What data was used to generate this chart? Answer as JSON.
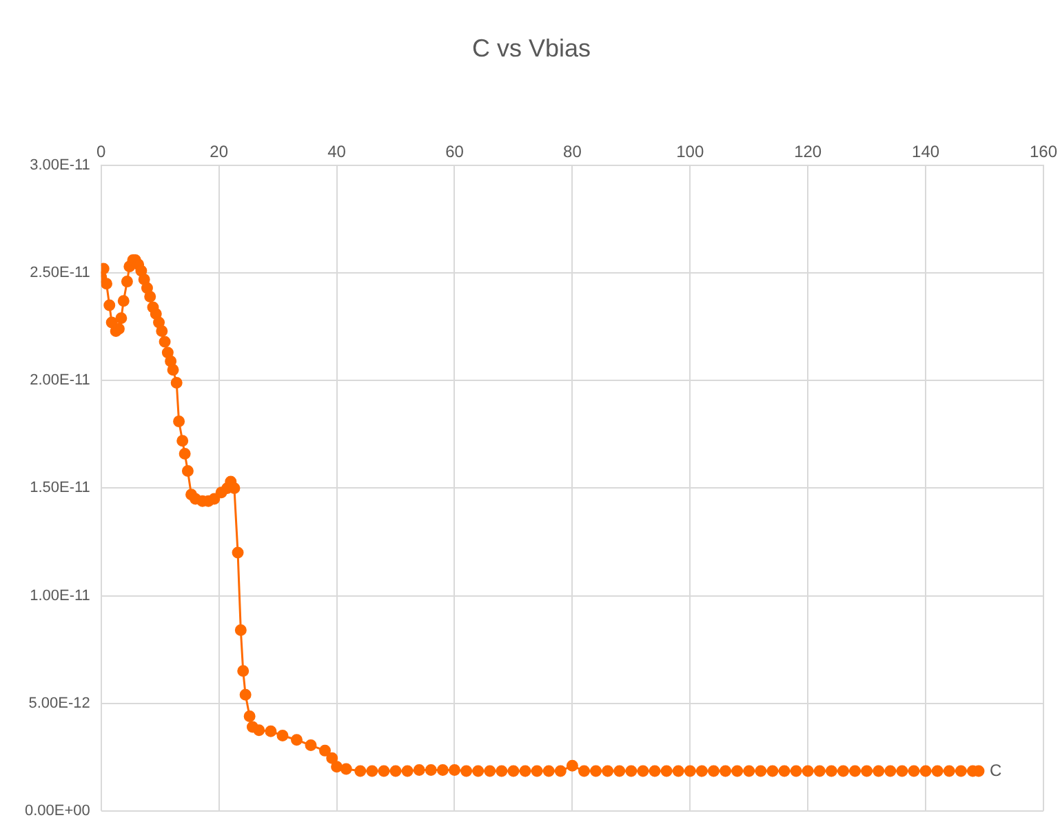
{
  "chart_data": {
    "type": "line",
    "title": "C vs Vbias",
    "x": [
      0,
      0.4,
      0.9,
      1.4,
      1.8,
      2.5,
      3.0,
      3.4,
      3.8,
      4.4,
      4.8,
      5.4,
      5.8,
      6.3,
      6.8,
      7.3,
      7.8,
      8.3,
      8.8,
      9.3,
      9.8,
      10.3,
      10.8,
      11.3,
      11.8,
      12.2,
      12.8,
      13.2,
      13.8,
      14.2,
      14.7,
      15.3,
      16,
      17.2,
      18.2,
      19.2,
      20.4,
      21.4,
      22,
      22.6,
      23.2,
      23.7,
      24.1,
      24.5,
      25.2,
      25.7,
      26.8,
      28.8,
      30.8,
      33.2,
      35.6,
      38.0,
      39.2,
      40.0,
      41.6,
      44,
      46,
      48,
      50,
      52,
      54,
      56,
      58,
      60,
      62,
      64,
      66,
      68,
      70,
      72,
      74,
      76,
      78,
      80,
      82,
      84,
      86,
      88,
      90,
      92,
      94,
      96,
      98,
      100,
      102,
      104,
      106,
      108,
      110,
      112,
      114,
      116,
      118,
      120,
      122,
      124,
      126,
      128,
      130,
      132,
      134,
      136,
      138,
      140,
      142,
      144,
      146,
      148,
      149
    ],
    "series": [
      {
        "name": "C",
        "color": "#ff6a00",
        "values": [
          2.48e-11,
          2.52e-11,
          2.45e-11,
          2.35e-11,
          2.27e-11,
          2.23e-11,
          2.24e-11,
          2.29e-11,
          2.37e-11,
          2.46e-11,
          2.53e-11,
          2.56e-11,
          2.56e-11,
          2.54e-11,
          2.51e-11,
          2.47e-11,
          2.43e-11,
          2.39e-11,
          2.34e-11,
          2.31e-11,
          2.27e-11,
          2.23e-11,
          2.18e-11,
          2.13e-11,
          2.09e-11,
          2.05e-11,
          1.99e-11,
          1.81e-11,
          1.72e-11,
          1.66e-11,
          1.58e-11,
          1.47e-11,
          1.45e-11,
          1.44e-11,
          1.44e-11,
          1.45e-11,
          1.48e-11,
          1.5e-11,
          1.53e-11,
          1.5e-11,
          1.2e-11,
          8.4e-12,
          6.5e-12,
          5.4e-12,
          4.4e-12,
          3.9e-12,
          3.75e-12,
          3.7e-12,
          3.5e-12,
          3.3e-12,
          3.05e-12,
          2.8e-12,
          2.45e-12,
          2.05e-12,
          1.95e-12,
          1.85e-12,
          1.85e-12,
          1.85e-12,
          1.85e-12,
          1.85e-12,
          1.9e-12,
          1.9e-12,
          1.9e-12,
          1.9e-12,
          1.85e-12,
          1.85e-12,
          1.85e-12,
          1.85e-12,
          1.85e-12,
          1.85e-12,
          1.85e-12,
          1.85e-12,
          1.85e-12,
          2.1e-12,
          1.85e-12,
          1.85e-12,
          1.85e-12,
          1.85e-12,
          1.85e-12,
          1.85e-12,
          1.85e-12,
          1.85e-12,
          1.85e-12,
          1.85e-12,
          1.85e-12,
          1.85e-12,
          1.85e-12,
          1.85e-12,
          1.85e-12,
          1.85e-12,
          1.85e-12,
          1.85e-12,
          1.85e-12,
          1.85e-12,
          1.85e-12,
          1.85e-12,
          1.85e-12,
          1.85e-12,
          1.85e-12,
          1.85e-12,
          1.85e-12,
          1.85e-12,
          1.85e-12,
          1.85e-12,
          1.85e-12,
          1.85e-12,
          1.85e-12,
          1.85e-12,
          1.85e-12
        ]
      }
    ],
    "xlim": [
      0,
      160
    ],
    "xticks": [
      0,
      20,
      40,
      60,
      80,
      100,
      120,
      140,
      160
    ],
    "ylim": [
      0,
      3e-11
    ],
    "yticks": [
      {
        "value": 0,
        "label": "0.00E+00"
      },
      {
        "value": 5e-12,
        "label": "5.00E-12"
      },
      {
        "value": 1e-11,
        "label": "1.00E-11"
      },
      {
        "value": 1.5e-11,
        "label": "1.50E-11"
      },
      {
        "value": 2e-11,
        "label": "2.00E-11"
      },
      {
        "value": 2.5e-11,
        "label": "2.50E-11"
      },
      {
        "value": 3e-11,
        "label": "3.00E-11"
      }
    ],
    "grid": true,
    "legend": false,
    "marker": "circle",
    "line_style": "solid"
  }
}
